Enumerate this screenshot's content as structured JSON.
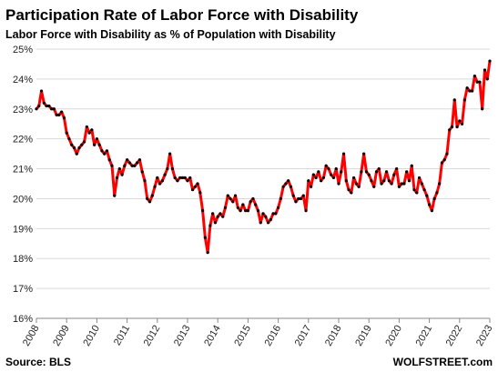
{
  "chart_data": {
    "type": "line",
    "title": "Participation  Rate of Labor Force with Disability",
    "subtitle": "Labor Force with Disability as % of Population with Disability",
    "source": "Source: BLS",
    "brand": "WOLFSTREET.com",
    "color": "#ff0000",
    "marker_color": "#000000",
    "grid": true,
    "xlim": [
      2008,
      2023
    ],
    "xticks": [
      2008,
      2009,
      2010,
      2011,
      2012,
      2013,
      2014,
      2015,
      2016,
      2017,
      2018,
      2019,
      2020,
      2021,
      2022,
      2023
    ],
    "ylim": [
      16,
      25
    ],
    "yticks": [
      {
        "value": 16,
        "label": "16%"
      },
      {
        "value": 17,
        "label": "17%"
      },
      {
        "value": 18,
        "label": "18%"
      },
      {
        "value": 19,
        "label": "19%"
      },
      {
        "value": 20,
        "label": "20%"
      },
      {
        "value": 21,
        "label": "21%"
      },
      {
        "value": 22,
        "label": "22%"
      },
      {
        "value": 23,
        "label": "23%"
      },
      {
        "value": 24,
        "label": "24%"
      },
      {
        "value": 25,
        "label": "25%"
      }
    ],
    "x": [
      2008,
      2008.083,
      2008.167,
      2008.25,
      2008.333,
      2008.417,
      2008.5,
      2008.583,
      2008.667,
      2008.75,
      2008.833,
      2008.917,
      2009,
      2009.083,
      2009.167,
      2009.25,
      2009.333,
      2009.417,
      2009.5,
      2009.583,
      2009.667,
      2009.75,
      2009.833,
      2009.917,
      2010,
      2010.083,
      2010.167,
      2010.25,
      2010.333,
      2010.417,
      2010.5,
      2010.583,
      2010.667,
      2010.75,
      2010.833,
      2010.917,
      2011,
      2011.083,
      2011.167,
      2011.25,
      2011.333,
      2011.417,
      2011.5,
      2011.583,
      2011.667,
      2011.75,
      2011.833,
      2011.917,
      2012,
      2012.083,
      2012.167,
      2012.25,
      2012.333,
      2012.417,
      2012.5,
      2012.583,
      2012.667,
      2012.75,
      2012.833,
      2012.917,
      2013,
      2013.083,
      2013.167,
      2013.25,
      2013.333,
      2013.417,
      2013.5,
      2013.583,
      2013.667,
      2013.75,
      2013.833,
      2013.917,
      2014,
      2014.083,
      2014.167,
      2014.25,
      2014.333,
      2014.417,
      2014.5,
      2014.583,
      2014.667,
      2014.75,
      2014.833,
      2014.917,
      2015,
      2015.083,
      2015.167,
      2015.25,
      2015.333,
      2015.417,
      2015.5,
      2015.583,
      2015.667,
      2015.75,
      2015.833,
      2015.917,
      2016,
      2016.083,
      2016.167,
      2016.25,
      2016.333,
      2016.417,
      2016.5,
      2016.583,
      2016.667,
      2016.75,
      2016.833,
      2016.917,
      2017,
      2017.083,
      2017.167,
      2017.25,
      2017.333,
      2017.417,
      2017.5,
      2017.583,
      2017.667,
      2017.75,
      2017.833,
      2017.917,
      2018,
      2018.083,
      2018.167,
      2018.25,
      2018.333,
      2018.417,
      2018.5,
      2018.583,
      2018.667,
      2018.75,
      2018.833,
      2018.917,
      2019,
      2019.083,
      2019.167,
      2019.25,
      2019.333,
      2019.417,
      2019.5,
      2019.583,
      2019.667,
      2019.75,
      2019.833,
      2019.917,
      2020,
      2020.083,
      2020.167,
      2020.25,
      2020.333,
      2020.417,
      2020.5,
      2020.583,
      2020.667,
      2020.75,
      2020.833,
      2020.917,
      2021,
      2021.083,
      2021.167,
      2021.25,
      2021.333,
      2021.417,
      2021.5,
      2021.583,
      2021.667,
      2021.75,
      2021.833,
      2021.917,
      2022,
      2022.083,
      2022.167,
      2022.25,
      2022.333,
      2022.417,
      2022.5,
      2022.583,
      2022.667,
      2022.75,
      2022.833,
      2022.917,
      2023
    ],
    "values": [
      23.0,
      23.1,
      23.6,
      23.2,
      23.1,
      23.1,
      23.0,
      23.0,
      22.8,
      22.8,
      22.9,
      22.7,
      22.2,
      22.0,
      21.8,
      21.7,
      21.5,
      21.7,
      21.8,
      21.9,
      22.4,
      22.2,
      22.3,
      21.8,
      22.0,
      21.8,
      21.6,
      21.5,
      21.6,
      21.3,
      21.1,
      20.1,
      20.7,
      21.0,
      20.8,
      21.1,
      21.3,
      21.2,
      21.1,
      21.1,
      21.2,
      21.3,
      20.9,
      20.6,
      20.0,
      19.9,
      20.1,
      20.4,
      20.7,
      20.5,
      20.6,
      20.8,
      21.0,
      21.5,
      21.0,
      20.7,
      20.6,
      20.7,
      20.7,
      20.7,
      20.6,
      20.7,
      20.3,
      20.4,
      20.5,
      20.2,
      19.6,
      18.7,
      18.2,
      19.1,
      19.5,
      19.2,
      19.4,
      19.5,
      19.4,
      19.7,
      20.1,
      20.0,
      19.9,
      20.1,
      19.7,
      19.6,
      19.8,
      19.6,
      19.6,
      19.9,
      20.0,
      19.8,
      19.6,
      19.2,
      19.5,
      19.4,
      19.2,
      19.3,
      19.5,
      19.5,
      19.7,
      20.0,
      20.4,
      20.5,
      20.6,
      20.4,
      20.1,
      19.9,
      20.0,
      20.0,
      20.1,
      19.6,
      20.6,
      20.4,
      20.8,
      20.7,
      20.9,
      20.6,
      20.7,
      21.1,
      21.0,
      20.8,
      20.7,
      21.0,
      20.5,
      20.9,
      21.5,
      20.6,
      20.3,
      20.2,
      20.7,
      20.5,
      20.4,
      20.9,
      21.5,
      20.9,
      20.8,
      20.6,
      20.4,
      20.9,
      21.0,
      20.5,
      20.6,
      20.9,
      20.6,
      20.5,
      20.8,
      21.0,
      20.4,
      20.5,
      20.5,
      20.9,
      20.6,
      21.1,
      20.3,
      20.2,
      20.7,
      20.5,
      20.3,
      20.1,
      19.8,
      19.6,
      20.0,
      20.2,
      20.5,
      21.2,
      21.3,
      21.5,
      22.3,
      22.4,
      23.3,
      22.4,
      22.6,
      22.5,
      23.3,
      23.7,
      23.6,
      23.6,
      24.1,
      23.9,
      23.9,
      23.0,
      24.3,
      24.0,
      24.6
    ]
  }
}
